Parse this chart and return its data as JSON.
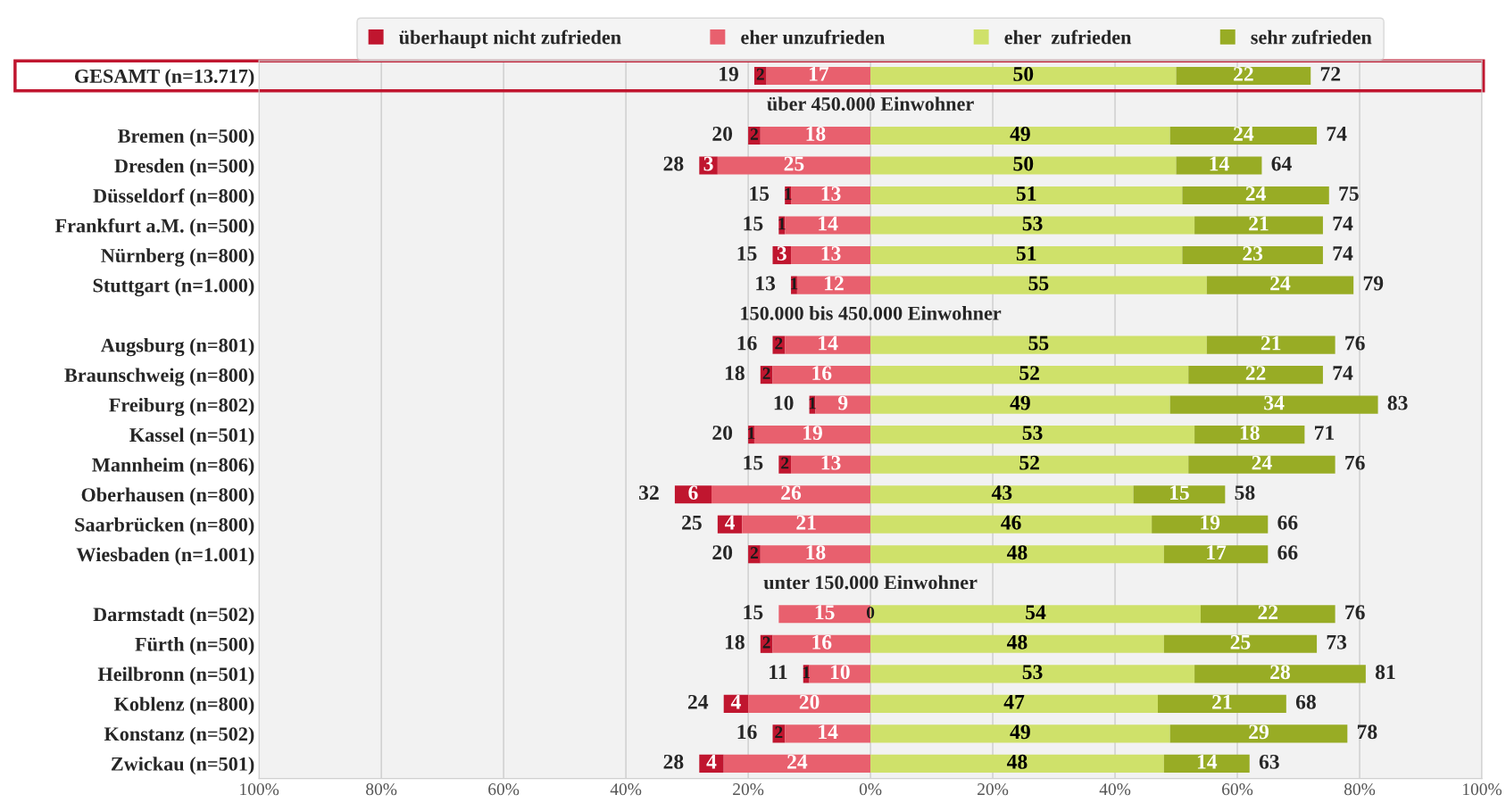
{
  "chart_data": {
    "type": "bar",
    "orientation": "horizontal",
    "categories": [
      "GESAMT (n=13.717)",
      null,
      "Bremen (n=500)",
      "Dresden (n=500)",
      "Düsseldorf (n=800)",
      "Frankfurt a.M. (n=500)",
      "Nürnberg (n=800)",
      "Stuttgart (n=1.000)",
      null,
      "Augsburg (n=801)",
      "Braunschweig (n=800)",
      "Freiburg (n=802)",
      "Kassel (n=501)",
      "Mannheim (n=806)",
      "Oberhausen (n=800)",
      "Saarbrücken (n=800)",
      "Wiesbaden (n=1.001)",
      null,
      "Darmstadt (n=502)",
      "Fürth (n=500)",
      "Heilbronn (n=501)",
      "Koblenz (n=800)",
      "Konstanz (n=502)",
      "Zwickau (n=501)"
    ],
    "annotations": [
      "über 450.000 Einwohner",
      "150.000 bis 450.000 Einwohner",
      "unter 150.000 Einwohner"
    ],
    "series": [
      {
        "name": "überhaupt nicht zufrieden",
        "color": "#c0162f",
        "values": [
          2,
          null,
          2,
          3,
          1,
          1,
          3,
          1,
          null,
          2,
          2,
          1,
          1,
          2,
          6,
          4,
          2,
          null,
          0,
          2,
          1,
          4,
          2,
          4
        ],
        "base": [
          -19,
          null,
          -20,
          -28,
          -14,
          -15,
          -16,
          -13,
          null,
          -16,
          -18,
          -10,
          -20,
          -15,
          -32,
          -25,
          -20,
          null,
          null,
          -18,
          -11,
          -24,
          -16,
          -28
        ]
      },
      {
        "name": "eher unzufrieden",
        "color": "#e8606e",
        "values": [
          17,
          null,
          18,
          25,
          13,
          14,
          13,
          12,
          null,
          14,
          16,
          9,
          19,
          13,
          26,
          21,
          18,
          null,
          15,
          16,
          10,
          20,
          14,
          24
        ],
        "base": [
          -17,
          null,
          -18,
          -25,
          -13,
          -14,
          -13,
          -12,
          null,
          -14,
          -16,
          -9,
          -19,
          -13,
          -26,
          -21,
          -18,
          null,
          -15,
          -16,
          -10,
          -20,
          -14,
          -24
        ]
      },
      {
        "name": "eher  zufrieden",
        "color": "#cfe16a",
        "values": [
          50,
          null,
          49,
          50,
          51,
          53,
          51,
          55,
          null,
          55,
          52,
          49,
          53,
          52,
          43,
          46,
          48,
          null,
          54,
          48,
          53,
          47,
          49,
          48
        ],
        "base": [
          0,
          null,
          0,
          0,
          0,
          0,
          0,
          0,
          null,
          0,
          0,
          0,
          0,
          0,
          0,
          0,
          0,
          null,
          0,
          0,
          0,
          0,
          0,
          0
        ]
      },
      {
        "name": "sehr zufrieden",
        "color": "#98ac25",
        "values": [
          22,
          null,
          24,
          14,
          24,
          21,
          23,
          24,
          null,
          21,
          22,
          34,
          18,
          24,
          15,
          19,
          17,
          null,
          22,
          25,
          28,
          21,
          29,
          14
        ],
        "base": [
          50,
          null,
          49,
          50,
          51,
          53,
          51,
          55,
          null,
          55,
          52,
          49,
          53,
          52,
          43,
          46,
          48,
          null,
          54,
          48,
          53,
          47,
          49,
          48
        ]
      }
    ],
    "data_labels": true,
    "totals": [
      [
        "19",
        "72"
      ],
      null,
      [
        "20",
        "74"
      ],
      [
        "28",
        "64"
      ],
      [
        "15",
        "75"
      ],
      [
        "15",
        "74"
      ],
      [
        "15",
        "74"
      ],
      [
        "13",
        "79"
      ],
      null,
      [
        "16",
        "76"
      ],
      [
        "18",
        "74"
      ],
      [
        "10",
        "83"
      ],
      [
        "20",
        "71"
      ],
      [
        "15",
        "76"
      ],
      [
        "32",
        "58"
      ],
      [
        "25",
        "66"
      ],
      [
        "20",
        "66"
      ],
      null,
      [
        "15",
        "76"
      ],
      [
        "18",
        "73"
      ],
      [
        "11",
        "81"
      ],
      [
        "24",
        "68"
      ],
      [
        "16",
        "78"
      ],
      [
        "28",
        "63"
      ]
    ],
    "xlim": [
      -100,
      100
    ],
    "xticks": [
      {
        "value": -100,
        "label": "100%"
      },
      {
        "value": -80,
        "label": "80%"
      },
      {
        "value": -60,
        "label": "60%"
      },
      {
        "value": -40,
        "label": "40%"
      },
      {
        "value": -20,
        "label": "20%"
      },
      {
        "value": 0,
        "label": "0%"
      },
      {
        "value": 20,
        "label": "20%"
      },
      {
        "value": 40,
        "label": "40%"
      },
      {
        "value": 60,
        "label": "60%"
      },
      {
        "value": 80,
        "label": "80%"
      },
      {
        "value": 100,
        "label": "100%"
      }
    ],
    "grid": "x",
    "legend": "top"
  }
}
